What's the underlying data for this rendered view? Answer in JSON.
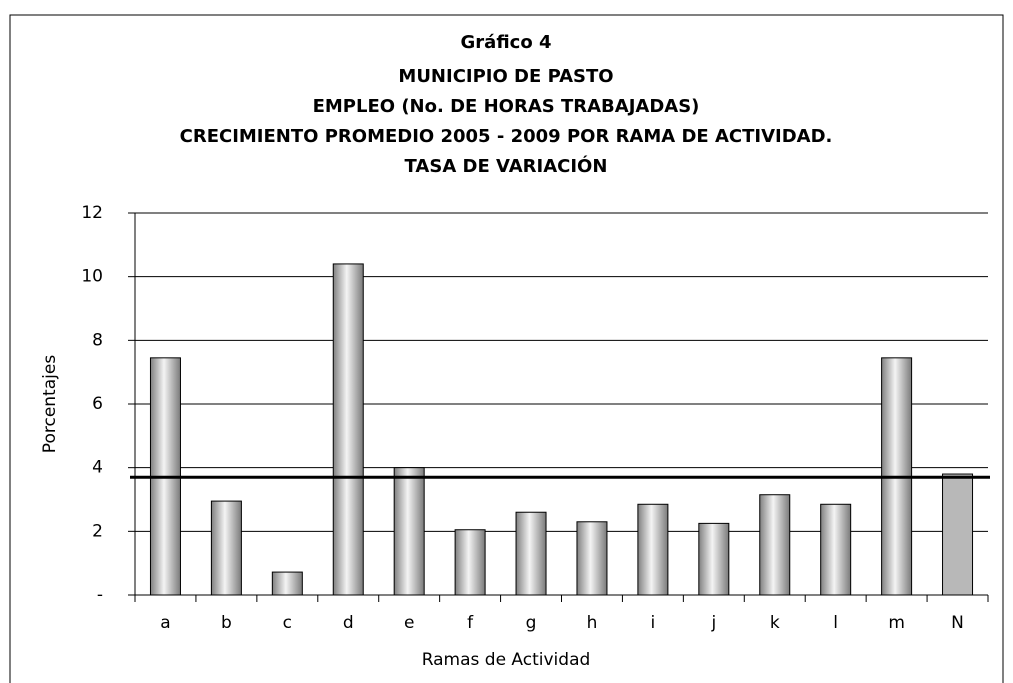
{
  "chart_data": {
    "type": "bar",
    "title": "Gráfico 4",
    "subtitle": [
      "MUNICIPIO DE PASTO",
      "EMPLEO (No. DE HORAS TRABAJADAS)",
      "CRECIMIENTO PROMEDIO 2005 - 2009 POR RAMA DE ACTIVIDAD.",
      "TASA DE VARIACIÓN"
    ],
    "x_label": "Ramas de Actividad",
    "y_label": "Porcentajes",
    "categories": [
      "a",
      "b",
      "c",
      "d",
      "e",
      "f",
      "g",
      "h",
      "i",
      "j",
      "k",
      "l",
      "m",
      "N"
    ],
    "values": [
      7.45,
      2.95,
      0.72,
      10.4,
      4.0,
      2.05,
      2.6,
      2.3,
      2.85,
      2.25,
      3.15,
      2.85,
      7.45,
      3.8
    ],
    "colors": [
      "#a8a8a8",
      "#a8a8a8",
      "#a8a8a8",
      "#a8a8a8",
      "#a8a8a8",
      "#a8a8a8",
      "#a8a8a8",
      "#a8a8a8",
      "#a8a8a8",
      "#a8a8a8",
      "#a8a8a8",
      "#a8a8a8",
      "#a8a8a8",
      "#b8b8b8"
    ],
    "reference_line": 3.7,
    "ylim": [
      0,
      12
    ],
    "yticks": [
      {
        "value": 0,
        "label": "-"
      },
      2,
      4,
      6,
      8,
      10,
      12
    ],
    "grid": true
  }
}
